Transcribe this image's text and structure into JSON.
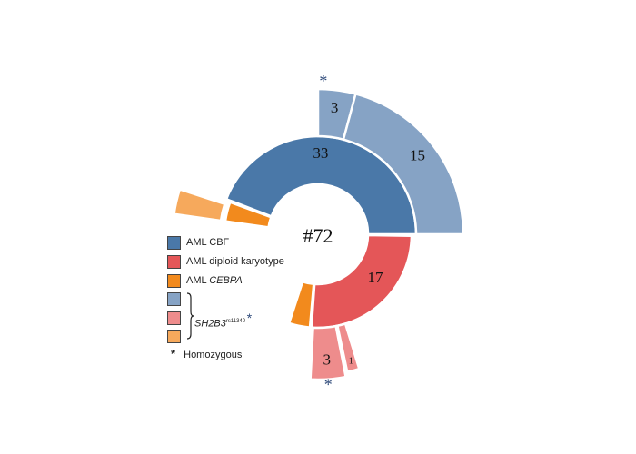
{
  "chart_data": {
    "type": "sunburst",
    "center_label": "#72",
    "inner_ring": [
      {
        "name": "AML CBF",
        "value": 33,
        "label": "33",
        "color": "#4a78a8"
      },
      {
        "name": "AML diploid karyotype",
        "value": 17,
        "label": "17",
        "color": "#e45658"
      },
      {
        "name": "AML CEBPA",
        "value": 3,
        "label": "",
        "color": "#f28a1d"
      }
    ],
    "outer_ring": [
      {
        "parent": "AML CBF",
        "value": 3,
        "label": "3",
        "color": "#86a3c5",
        "homozygous": true
      },
      {
        "parent": "AML CBF",
        "value": 15,
        "label": "15",
        "color": "#86a3c5",
        "homozygous": false
      },
      {
        "parent": "AML diploid karyotype",
        "value": 3,
        "label": "3",
        "color": "#ee8c8c",
        "homozygous": true
      },
      {
        "parent": "AML diploid karyotype",
        "value": 1,
        "label": "1",
        "color": "#ee8c8c",
        "homozygous": false
      },
      {
        "parent": "AML CEBPA",
        "value": 1,
        "label": "",
        "color": "#f6a95c",
        "homozygous": false
      }
    ],
    "homozygous_marker": "*"
  },
  "legend": {
    "items": [
      {
        "label": "AML CBF",
        "italic": "",
        "color": "#4a78a8"
      },
      {
        "label": "AML diploid karyotype",
        "italic": "",
        "color": "#e45658"
      },
      {
        "label": "AML ",
        "italic": "CEBPA",
        "color": "#f28a1d"
      }
    ],
    "variant_swatches": [
      "#86a3c5",
      "#ee8c8c",
      "#f6a95c"
    ],
    "variant_gene": "SH2B3",
    "variant_rsid": "rs11340",
    "homozygous_symbol": "*",
    "homozygous_label": "Homozygous"
  },
  "colors": {
    "star": "#2f4a7a",
    "text": "#111111"
  }
}
